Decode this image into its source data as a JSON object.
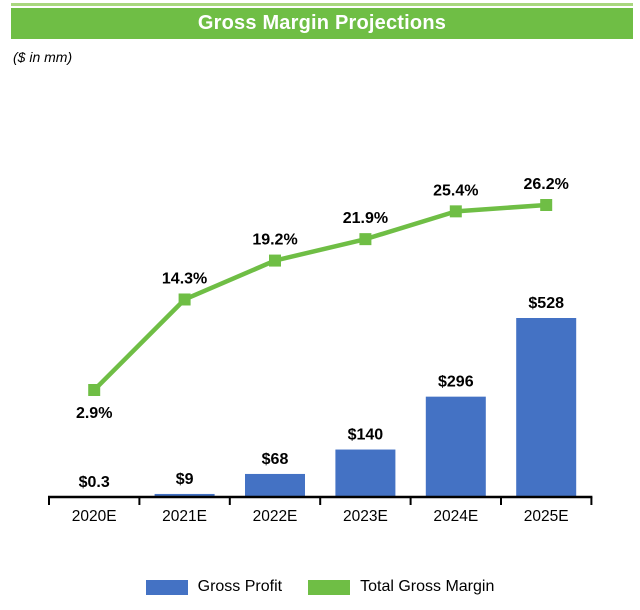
{
  "header": {
    "title": "Gross Margin Projections",
    "units_note": "($ in mm)"
  },
  "chart_data": {
    "type": "combo",
    "title": "Gross Margin Projections",
    "units": "$ in mm",
    "categories": [
      "2020E",
      "2021E",
      "2022E",
      "2023E",
      "2024E",
      "2025E"
    ],
    "series": [
      {
        "name": "Gross Profit",
        "type": "bar",
        "values": [
          0.3,
          9,
          68,
          140,
          296,
          528
        ],
        "labels": [
          "$0.3",
          "$9",
          "$68",
          "$140",
          "$296",
          "$528"
        ],
        "color": "#4472c4"
      },
      {
        "name": "Total Gross Margin",
        "type": "line",
        "values": [
          2.9,
          14.3,
          19.2,
          21.9,
          25.4,
          26.2
        ],
        "labels": [
          "2.9%",
          "14.3%",
          "19.2%",
          "21.9%",
          "25.4%",
          "26.2%"
        ],
        "color": "#6fbe45",
        "first_label_below": true
      }
    ],
    "xlabel": "",
    "ylabel": "",
    "grid": false,
    "value_axis_hidden": true,
    "legend_position": "bottom"
  },
  "legend": {
    "items": [
      {
        "label": "Gross Profit",
        "color": "#4472c4"
      },
      {
        "label": "Total Gross Margin",
        "color": "#6fbe45"
      }
    ]
  },
  "colors": {
    "accent_green": "#6fbe45",
    "light_green_rule": "#a9d77f",
    "bar_blue": "#4472c4",
    "axis_black": "#000000",
    "title_text": "#ffffff"
  }
}
